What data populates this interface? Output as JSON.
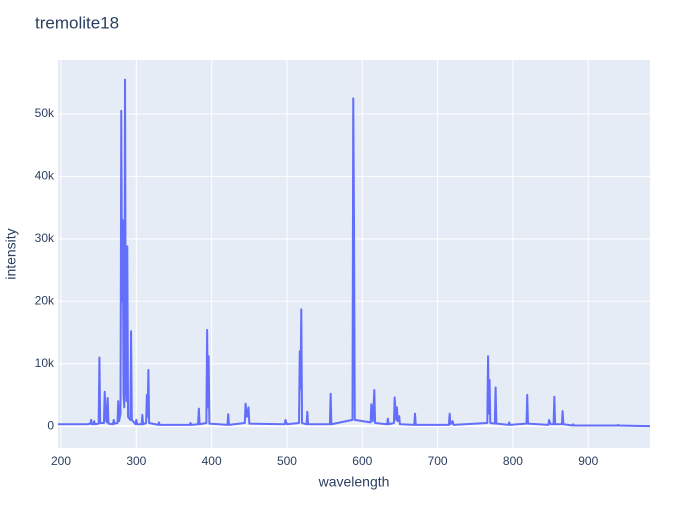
{
  "chart_data": {
    "type": "line",
    "title": "tremolite18",
    "x_label": "wavelength",
    "y_label": "intensity",
    "xlim": [
      196,
      982
    ],
    "ylim": [
      -3500,
      58650
    ],
    "xticks": [
      200,
      300,
      400,
      500,
      600,
      700,
      800,
      900
    ],
    "yticks": [
      0,
      {
        "value": 10000,
        "label": "10k"
      },
      {
        "value": 20000,
        "label": "20k"
      },
      {
        "value": 30000,
        "label": "30k"
      },
      {
        "value": 40000,
        "label": "40k"
      },
      {
        "value": 50000,
        "label": "50k"
      }
    ],
    "grid": true,
    "x": [
      196,
      235,
      239,
      240,
      241,
      243,
      244,
      245,
      250,
      251,
      252,
      257,
      258,
      260,
      261,
      262,
      263,
      269,
      270,
      271,
      275,
      276,
      277,
      279,
      280,
      281,
      282,
      283,
      284,
      285,
      286,
      287,
      288,
      289,
      292,
      293,
      294,
      299,
      300,
      301,
      307,
      308,
      309,
      313,
      314,
      315,
      316,
      317,
      329,
      330,
      331,
      371,
      372,
      373,
      382,
      383,
      384,
      393,
      394,
      395,
      396,
      397,
      421,
      422,
      423,
      444,
      445,
      447,
      449,
      450,
      497,
      498,
      500,
      516,
      517,
      518,
      519,
      520,
      526,
      527,
      528,
      557,
      558,
      559,
      587,
      588,
      589,
      590,
      611,
      612,
      614,
      616,
      617,
      633,
      634,
      635,
      642,
      643,
      645,
      646,
      647,
      649,
      650,
      669,
      670,
      671,
      715,
      716,
      717,
      720,
      721,
      766,
      767,
      768,
      769,
      770,
      776,
      777,
      778,
      794,
      795,
      796,
      818,
      819,
      820,
      847,
      848,
      850,
      854,
      855,
      856,
      865,
      866,
      867,
      879,
      880,
      881,
      939,
      940,
      941,
      982
    ],
    "series": [
      {
        "name": "intensity",
        "color": "#636efa",
        "values": [
          300,
          300,
          400,
          1000,
          300,
          300,
          800,
          300,
          400,
          11000,
          500,
          500,
          5500,
          800,
          600,
          4500,
          400,
          300,
          1000,
          400,
          500,
          4000,
          800,
          2000,
          50500,
          20000,
          33000,
          5000,
          3000,
          55500,
          8000,
          4000,
          28800,
          1500,
          1000,
          15200,
          1000,
          300,
          1000,
          300,
          300,
          1800,
          300,
          500,
          5000,
          1500,
          9000,
          500,
          200,
          600,
          200,
          200,
          500,
          200,
          300,
          2800,
          300,
          500,
          15400,
          3000,
          11200,
          400,
          200,
          1900,
          200,
          500,
          3600,
          1500,
          3000,
          400,
          300,
          1000,
          300,
          500,
          12000,
          6000,
          18700,
          500,
          300,
          2300,
          300,
          300,
          5200,
          300,
          1000,
          52500,
          33000,
          1000,
          600,
          3500,
          800,
          5800,
          500,
          300,
          1200,
          300,
          500,
          4600,
          1000,
          3000,
          800,
          1600,
          300,
          200,
          2000,
          200,
          200,
          2000,
          300,
          800,
          200,
          500,
          11200,
          2000,
          7400,
          500,
          400,
          6200,
          400,
          200,
          600,
          200,
          400,
          5000,
          400,
          200,
          1000,
          300,
          300,
          4700,
          300,
          300,
          2400,
          300,
          100,
          300,
          100,
          100,
          200,
          100,
          0
        ]
      }
    ]
  }
}
